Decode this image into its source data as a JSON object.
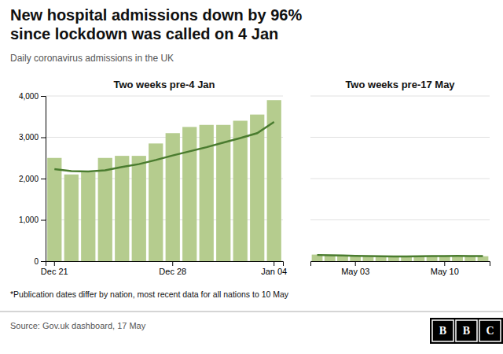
{
  "title": [
    "New hospital admissions down by 96%",
    "since lockdown was called on 4 Jan"
  ],
  "subtitle": "Daily coronavirus admissions in the UK",
  "footnote": "*Publication dates differ by nation, most recent data for all nations to 10 May",
  "source": "Source: Gov.uk dashboard, 17 May",
  "logo": [
    "B",
    "B",
    "C"
  ],
  "chart_data": [
    {
      "type": "bar",
      "title": "Two weeks pre-4 Jan",
      "categories": [
        "Dec 21",
        null,
        null,
        null,
        null,
        null,
        null,
        "Dec 28",
        null,
        null,
        null,
        null,
        null,
        "Jan 04"
      ],
      "series": [
        {
          "type": "bar",
          "color": "#b5cc8e",
          "values": [
            2500,
            2100,
            2150,
            2500,
            2550,
            2550,
            2850,
            3100,
            3250,
            3300,
            3300,
            3400,
            3550,
            3900
          ]
        },
        {
          "type": "line",
          "color": "#4a7c2f",
          "values": [
            2230,
            2180,
            2170,
            2200,
            2280,
            2350,
            2450,
            2560,
            2660,
            2760,
            2870,
            2980,
            3100,
            3370
          ]
        }
      ],
      "ylim": [
        0,
        4000
      ],
      "yticks": [
        0,
        {
          "value": 1000,
          "label": "1,000"
        },
        {
          "value": 2000,
          "label": "2,000"
        },
        {
          "value": 3000,
          "label": "3,000"
        },
        {
          "value": 4000,
          "label": "4,000"
        }
      ],
      "grid": true
    },
    {
      "type": "bar",
      "title": "Two weeks pre-17 May",
      "categories": [
        null,
        null,
        null,
        "May 03",
        null,
        null,
        null,
        null,
        null,
        null,
        "May 10",
        null,
        null,
        null
      ],
      "series": [
        {
          "type": "bar",
          "color": "#b5cc8e",
          "values": [
            160,
            140,
            130,
            120,
            115,
            110,
            108,
            115,
            120,
            130,
            135,
            130,
            125,
            120
          ]
        },
        {
          "type": "line",
          "color": "#4a7c2f",
          "values": [
            150,
            145,
            138,
            130,
            125,
            120,
            115,
            115,
            118,
            122,
            125,
            127,
            126,
            123
          ]
        }
      ],
      "ylim": [
        0,
        4000
      ],
      "yticks": [
        0,
        1000,
        2000,
        3000,
        4000
      ],
      "grid": true,
      "tick_labels": "x"
    }
  ]
}
